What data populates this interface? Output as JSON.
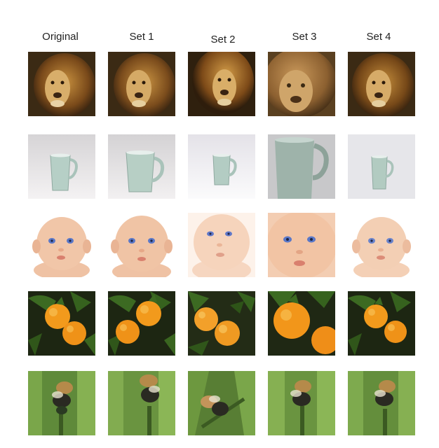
{
  "columns": [
    "Original",
    "Set 1",
    "Set 2",
    "Set 3",
    "Set 4"
  ],
  "rows": [
    {
      "subject": "lion"
    },
    {
      "subject": "mug"
    },
    {
      "subject": "baby"
    },
    {
      "subject": "oranges"
    },
    {
      "subject": "bee"
    }
  ]
}
